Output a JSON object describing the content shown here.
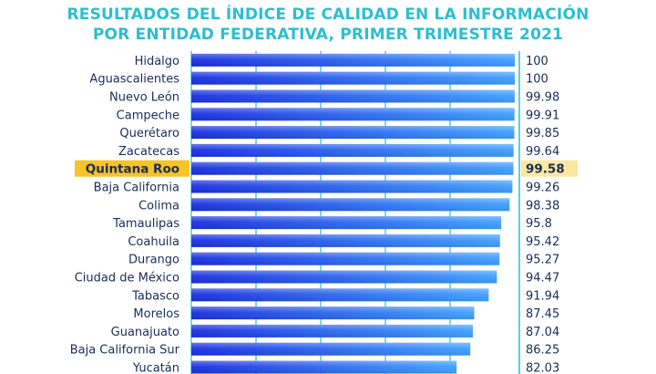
{
  "chart_data": {
    "type": "bar",
    "orientation": "horizontal",
    "title": "RESULTADOS DEL ÍNDICE DE CALIDAD EN LA INFORMACIÓN",
    "subtitle": "POR ENTIDAD FEDERATIVA, PRIMER TRIMESTRE 2021",
    "categories": [
      "Hidalgo",
      "Aguascalientes",
      "Nuevo León",
      "Campeche",
      "Querétaro",
      "Zacatecas",
      "Quintana Roo",
      "Baja California",
      "Colima",
      "Tamaulipas",
      "Coahuila",
      "Durango",
      "Ciudad de México",
      "Tabasco",
      "Morelos",
      "Guanajuato",
      "Baja California Sur",
      "Yucatán"
    ],
    "value_labels": [
      "100",
      "100",
      "99.98",
      "99.91",
      "99.85",
      "99.64",
      "99.58",
      "99.26",
      "98.38",
      "95.8",
      "95.42",
      "95.27",
      "94.47",
      "91.94",
      "87.45",
      "87.04",
      "86.25",
      "82.03"
    ],
    "values": [
      100,
      100,
      99.98,
      99.91,
      99.85,
      99.64,
      99.58,
      99.26,
      98.38,
      95.8,
      95.42,
      95.27,
      94.47,
      91.94,
      87.45,
      87.04,
      86.25,
      82.03
    ],
    "highlight": "Quintana Roo",
    "xlim": [
      0,
      100
    ],
    "grid": true,
    "colors": {
      "title": "#2bbfcf",
      "bar_dark": "#1a2fe0",
      "bar_light": "#3fa0ff",
      "grid": "#2bbfcf",
      "highlight_bg": "#f7c325",
      "text": "#1b2c5a"
    }
  }
}
